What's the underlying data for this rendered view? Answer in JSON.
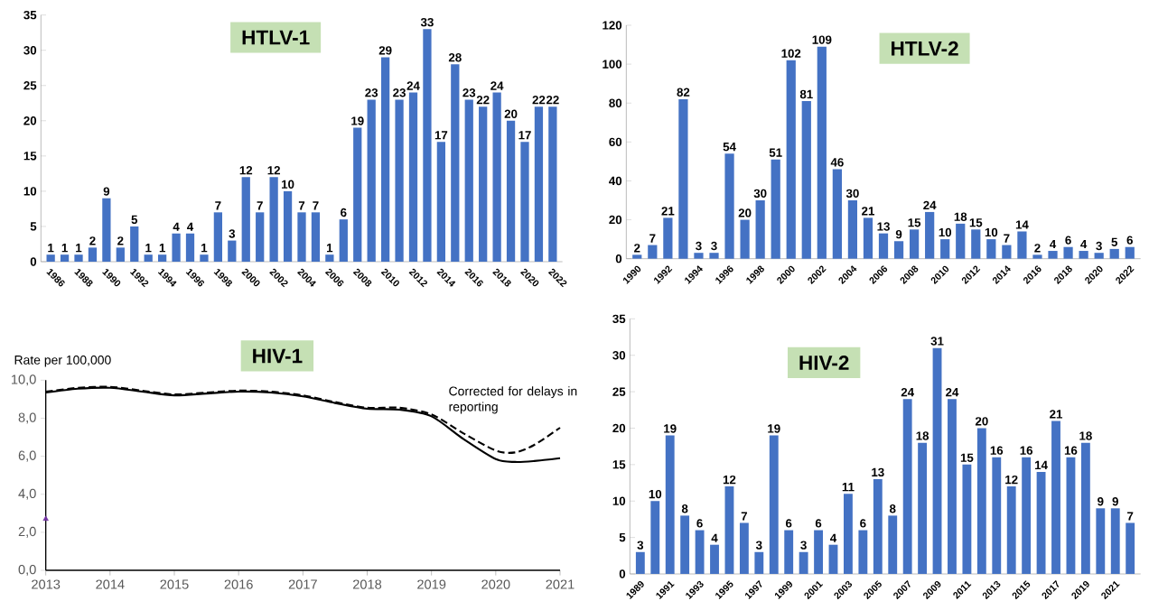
{
  "chart_data": [
    {
      "type": "bar",
      "title": "HTLV-1",
      "categories": [
        "1986",
        null,
        "1988",
        null,
        "1990",
        null,
        "1992",
        null,
        "1994",
        null,
        "1996",
        null,
        "1998",
        null,
        "2000",
        null,
        "2002",
        null,
        "2004",
        null,
        "2006",
        null,
        "2008",
        null,
        "2010",
        null,
        "2012",
        null,
        "2014",
        null,
        "2016",
        null,
        "2018",
        null,
        "2020",
        null,
        "2022"
      ],
      "values": [
        1,
        1,
        1,
        2,
        9,
        2,
        5,
        1,
        1,
        4,
        4,
        1,
        7,
        3,
        12,
        7,
        12,
        10,
        7,
        7,
        1,
        6,
        19,
        23,
        29,
        23,
        24,
        33,
        17,
        28,
        23,
        22,
        24,
        20,
        17,
        22,
        22
      ],
      "color": "#4472c4",
      "ylim": [
        0,
        35
      ],
      "yticks": [
        0,
        5,
        10,
        15,
        20,
        25,
        30,
        35
      ],
      "data_labels": true
    },
    {
      "type": "bar",
      "title": "HTLV-2",
      "categories": [
        "1990",
        null,
        "1992",
        null,
        "1994",
        null,
        "1996",
        null,
        "1998",
        null,
        "2000",
        null,
        "2002",
        null,
        "2004",
        null,
        "2006",
        null,
        "2008",
        null,
        "2010",
        null,
        "2012",
        null,
        "2014",
        null,
        "2016",
        null,
        "2018",
        null,
        "2020",
        null,
        "2022"
      ],
      "values": [
        2,
        7,
        21,
        82,
        3,
        3,
        54,
        20,
        30,
        51,
        102,
        81,
        109,
        46,
        30,
        21,
        13,
        9,
        15,
        24,
        10,
        18,
        15,
        10,
        7,
        14,
        2,
        4,
        6,
        4,
        3,
        5,
        6
      ],
      "color": "#4472c4",
      "ylim": [
        0,
        120
      ],
      "yticks": [
        0,
        20,
        40,
        60,
        80,
        100,
        120
      ],
      "data_labels": true
    },
    {
      "type": "line",
      "title": "HIV-1",
      "ylabel": "Rate per 100,000",
      "xlim": [
        2013,
        2021
      ],
      "xticks": [
        2013,
        2014,
        2015,
        2016,
        2017,
        2018,
        2019,
        2020,
        2021
      ],
      "ylim": [
        0,
        10
      ],
      "yticks": [
        {
          "value": 0,
          "label": "0,0"
        },
        {
          "value": 2,
          "label": "2,0"
        },
        {
          "value": 4,
          "label": "4,0"
        },
        {
          "value": 6,
          "label": "6,0"
        },
        {
          "value": 8,
          "label": "8,0"
        },
        {
          "value": 10,
          "label": "10,0"
        }
      ],
      "series": [
        {
          "color": "#000000",
          "line_style": "solid",
          "x": [
            2013,
            2013.5,
            2014,
            2014.5,
            2015,
            2015.5,
            2016,
            2016.5,
            2017,
            2017.5,
            2018,
            2018.5,
            2019,
            2019.5,
            2020,
            2020.3,
            2020.6,
            2021
          ],
          "values": [
            9.35,
            9.55,
            9.6,
            9.4,
            9.2,
            9.3,
            9.4,
            9.35,
            9.15,
            8.8,
            8.5,
            8.45,
            8.1,
            6.9,
            5.85,
            5.7,
            5.75,
            5.9
          ]
        },
        {
          "color": "#000000",
          "line_style": "dashed",
          "x": [
            2013,
            2013.5,
            2014,
            2014.5,
            2015,
            2015.5,
            2016,
            2016.5,
            2017,
            2017.5,
            2018,
            2018.5,
            2019,
            2019.5,
            2020,
            2020.3,
            2020.6,
            2021
          ],
          "values": [
            9.4,
            9.6,
            9.65,
            9.45,
            9.25,
            9.35,
            9.45,
            9.4,
            9.2,
            8.85,
            8.55,
            8.55,
            8.2,
            7.2,
            6.3,
            6.2,
            6.6,
            7.5
          ]
        },
        {
          "type": "scatter",
          "marker": "triangle",
          "color": "#7030a0",
          "x": [
            2013
          ],
          "values": [
            2.7
          ]
        }
      ],
      "annotations": [
        "Corrected for delays in reporting"
      ]
    },
    {
      "type": "bar",
      "title": "HIV-2",
      "categories": [
        "1989",
        null,
        "1991",
        null,
        "1993",
        null,
        "1995",
        null,
        "1997",
        null,
        "1999",
        null,
        "2001",
        null,
        "2003",
        null,
        "2005",
        null,
        "2007",
        null,
        "2009",
        null,
        "2011",
        null,
        "2013",
        null,
        "2015",
        null,
        "2017",
        null,
        "2019",
        null,
        "2021",
        null
      ],
      "values": [
        3,
        10,
        19,
        8,
        6,
        4,
        12,
        7,
        3,
        19,
        6,
        3,
        6,
        4,
        11,
        6,
        13,
        8,
        24,
        18,
        31,
        24,
        15,
        20,
        16,
        12,
        16,
        14,
        21,
        16,
        18,
        9,
        9,
        7
      ],
      "color": "#4472c4",
      "ylim": [
        0,
        35
      ],
      "yticks": [
        0,
        5,
        10,
        15,
        20,
        25,
        30,
        35
      ],
      "data_labels": true
    }
  ]
}
